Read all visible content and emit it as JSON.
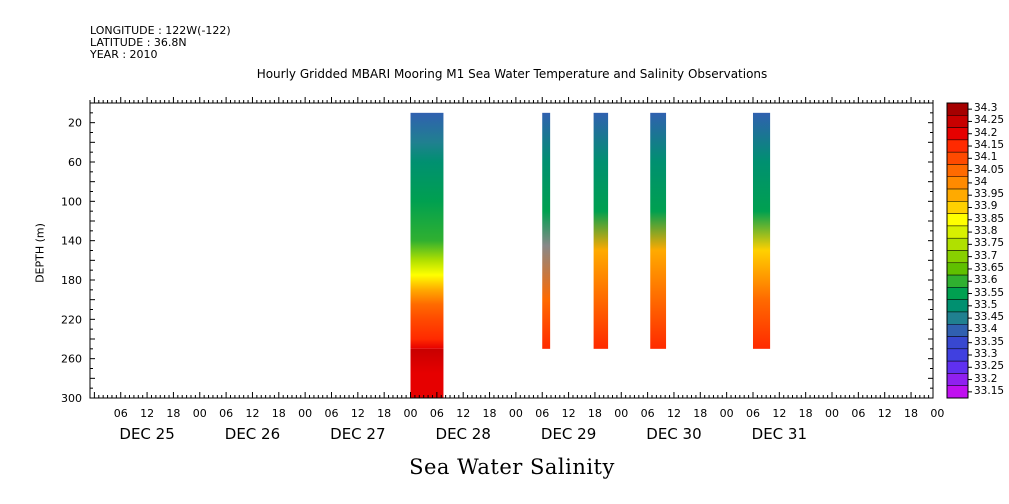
{
  "header": {
    "longitude": "LONGITUDE : 122W(-122)",
    "latitude": "LATITUDE : 36.8N",
    "year": "YEAR : 2010"
  },
  "chart_data": {
    "type": "heatmap",
    "title": "Hourly Gridded MBARI Mooring M1 Sea Water Temperature and Salinity Observations",
    "xlabel": "Sea Water Salinity",
    "ylabel": "DEPTH (m)",
    "y_reversed": true,
    "ylim": [
      0,
      300
    ],
    "y_ticks": [
      20,
      60,
      100,
      140,
      180,
      220,
      260,
      300
    ],
    "x_hour_ticks": [
      "06",
      "12",
      "18",
      "00",
      "06",
      "12",
      "18",
      "00",
      "06",
      "12",
      "18",
      "00",
      "06",
      "12",
      "18",
      "00",
      "06",
      "12",
      "18",
      "00",
      "06",
      "12",
      "18",
      "00",
      "06",
      "12",
      "18",
      "00",
      "06",
      "12",
      "18",
      "00"
    ],
    "x_day_labels": [
      "DEC 25",
      "DEC 26",
      "DEC 27",
      "DEC 28",
      "DEC 29",
      "DEC 30",
      "DEC 31"
    ],
    "colorbar": {
      "levels": [
        "34.3",
        "34.25",
        "34.2",
        "34.15",
        "34.1",
        "34.05",
        "34",
        "33.95",
        "33.9",
        "33.85",
        "33.8",
        "33.75",
        "33.7",
        "33.65",
        "33.6",
        "33.55",
        "33.5",
        "33.45",
        "33.4",
        "33.35",
        "33.3",
        "33.25",
        "33.2",
        "33.15"
      ],
      "colors": [
        "#a50000",
        "#c80000",
        "#e60000",
        "#ff2a00",
        "#ff4a00",
        "#ff6a00",
        "#ff8a00",
        "#ffaa00",
        "#ffd000",
        "#ffff00",
        "#d8f000",
        "#b0e000",
        "#88d000",
        "#60c000",
        "#30b030",
        "#00a050",
        "#009070",
        "#208090",
        "#3060b0",
        "#3848d0",
        "#4040e0",
        "#6030f0",
        "#9020f0",
        "#c010f0"
      ]
    },
    "segments": [
      {
        "x": [
          24.0,
          26.5
        ],
        "y": [
          10,
          250
        ],
        "profile": [
          [
            10,
            "33.4"
          ],
          [
            40,
            "33.45"
          ],
          [
            60,
            "33.5"
          ],
          [
            100,
            "33.55"
          ],
          [
            140,
            "33.6"
          ],
          [
            160,
            "33.75"
          ],
          [
            175,
            "33.85"
          ],
          [
            190,
            "33.95"
          ],
          [
            205,
            "34.05"
          ],
          [
            220,
            "34.1"
          ],
          [
            240,
            "34.15"
          ],
          [
            250,
            "34.2"
          ]
        ]
      },
      {
        "x": [
          24.0,
          26.5
        ],
        "y": [
          250,
          300
        ],
        "profile": [
          [
            250,
            "34.25"
          ],
          [
            275,
            "34.2"
          ],
          [
            300,
            "34.2"
          ]
        ]
      },
      {
        "x": [
          34.0,
          34.6
        ],
        "y": [
          10,
          250
        ],
        "profile": [
          [
            10,
            "33.4"
          ],
          [
            60,
            "33.5"
          ],
          [
            110,
            "33.55"
          ],
          [
            145,
            "34.0"
          ],
          [
            200,
            "34.05"
          ],
          [
            250,
            "34.15"
          ]
        ]
      },
      {
        "x": [
          37.9,
          39.0
        ],
        "y": [
          10,
          250
        ],
        "profile": [
          [
            10,
            "33.4"
          ],
          [
            60,
            "33.5"
          ],
          [
            110,
            "33.55"
          ],
          [
            150,
            "33.95"
          ],
          [
            200,
            "34.05"
          ],
          [
            250,
            "34.15"
          ]
        ]
      },
      {
        "x": [
          42.2,
          43.4
        ],
        "y": [
          10,
          250
        ],
        "profile": [
          [
            10,
            "33.4"
          ],
          [
            60,
            "33.5"
          ],
          [
            110,
            "33.55"
          ],
          [
            150,
            "33.95"
          ],
          [
            200,
            "34.05"
          ],
          [
            250,
            "34.15"
          ]
        ]
      },
      {
        "x": [
          50.0,
          51.3
        ],
        "y": [
          10,
          250
        ],
        "profile": [
          [
            10,
            "33.4"
          ],
          [
            60,
            "33.5"
          ],
          [
            110,
            "33.55"
          ],
          [
            150,
            "33.9"
          ],
          [
            200,
            "34.05"
          ],
          [
            250,
            "34.15"
          ]
        ]
      },
      {
        "x": [
          72.0,
          75.2
        ],
        "y": [
          10,
          300
        ],
        "profile": [
          [
            10,
            "33.35"
          ],
          [
            50,
            "33.4"
          ],
          [
            70,
            "33.5"
          ],
          [
            100,
            "33.6"
          ],
          [
            130,
            "33.75"
          ],
          [
            150,
            "34.0"
          ],
          [
            200,
            "34.05"
          ],
          [
            230,
            "34.15"
          ],
          [
            260,
            "34.25"
          ],
          [
            300,
            "34.25"
          ]
        ]
      },
      {
        "x": [
          76.8,
          78.2
        ],
        "y": [
          10,
          300
        ],
        "profile": [
          [
            10,
            "33.25"
          ],
          [
            40,
            "33.4"
          ],
          [
            80,
            "33.55"
          ],
          [
            130,
            "33.8"
          ],
          [
            150,
            "34.05"
          ],
          [
            240,
            "34.15"
          ],
          [
            300,
            "34.15"
          ]
        ]
      },
      {
        "x": [
          80.0,
          80.7
        ],
        "y": [
          10,
          300
        ],
        "profile": [
          [
            10,
            "33.35"
          ],
          [
            80,
            "33.55"
          ],
          [
            140,
            "34.05"
          ],
          [
            300,
            "34.15"
          ]
        ]
      },
      {
        "x": [
          82.6,
          83.3
        ],
        "y": [
          10,
          250
        ],
        "profile": [
          [
            10,
            "33.4"
          ],
          [
            80,
            "33.55"
          ],
          [
            140,
            "34.05"
          ],
          [
            250,
            "34.15"
          ]
        ]
      },
      {
        "x": [
          85.0,
          86.1
        ],
        "y": [
          10,
          250
        ],
        "profile": [
          [
            10,
            "33.4"
          ],
          [
            80,
            "33.55"
          ],
          [
            140,
            "34.0"
          ],
          [
            250,
            "34.15"
          ]
        ]
      },
      {
        "x": [
          85.0,
          85.6
        ],
        "y": [
          250,
          300
        ],
        "profile": [
          [
            250,
            "34.15"
          ],
          [
            300,
            "34.2"
          ]
        ]
      },
      {
        "x": [
          88.0,
          89.8
        ],
        "y": [
          10,
          250
        ],
        "profile": [
          [
            10,
            "33.35"
          ],
          [
            50,
            "33.45"
          ],
          [
            100,
            "33.55"
          ],
          [
            140,
            "33.85"
          ],
          [
            160,
            "34.05"
          ],
          [
            250,
            "34.15"
          ]
        ]
      },
      {
        "x": [
          94.7,
          95.4
        ],
        "y": [
          10,
          300
        ],
        "profile": [
          [
            10,
            "33.35"
          ],
          [
            60,
            "33.5"
          ],
          [
            140,
            "33.75"
          ],
          [
            180,
            "34.05"
          ],
          [
            300,
            "34.2"
          ]
        ]
      }
    ]
  }
}
